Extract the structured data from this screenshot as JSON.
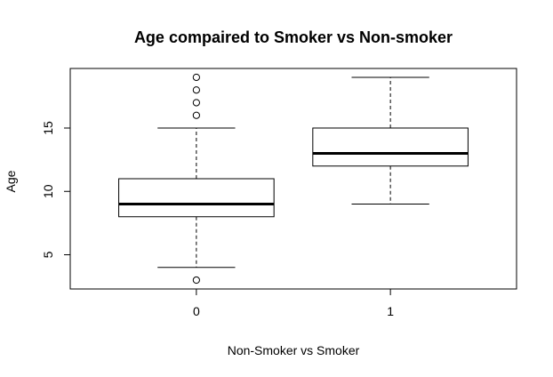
{
  "chart_data": {
    "type": "boxplot",
    "title": "Age compaired to Smoker vs Non-smoker",
    "xlabel": "Non-Smoker vs Smoker",
    "ylabel": "Age",
    "categories": [
      "0",
      "1"
    ],
    "y_ticks": [
      5,
      10,
      15
    ],
    "ylim": [
      2.3,
      19.7
    ],
    "grid": false,
    "boxes": [
      {
        "category": "0",
        "whisker_low": 4,
        "q1": 8,
        "median": 9,
        "q3": 11,
        "whisker_high": 15,
        "outliers": [
          3,
          16,
          17,
          18,
          19
        ]
      },
      {
        "category": "1",
        "whisker_low": 9,
        "q1": 12,
        "median": 13,
        "q3": 15,
        "whisker_high": 19,
        "outliers": []
      }
    ]
  }
}
